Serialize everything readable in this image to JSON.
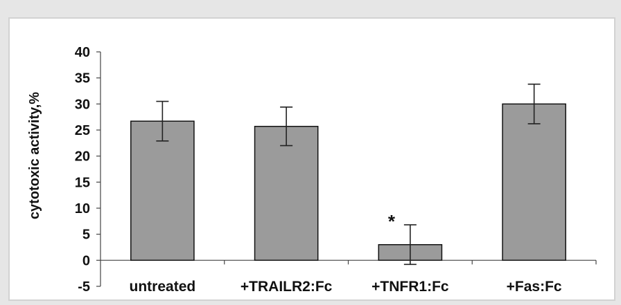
{
  "chart_data": {
    "type": "bar",
    "ylabel": "cytotoxic activity,%",
    "xlabel": "",
    "title": "",
    "ylim": [
      -5,
      40
    ],
    "yticks": [
      -5,
      0,
      5,
      10,
      15,
      20,
      25,
      30,
      35,
      40
    ],
    "categories": [
      "untreated",
      "+TRAILR2:Fc",
      "+TNFR1:Fc",
      "+Fas:Fc"
    ],
    "values": [
      26.7,
      25.7,
      3.0,
      30.0
    ],
    "errors": [
      3.8,
      3.7,
      3.8,
      3.8
    ],
    "annotations": [
      {
        "category": "+TNFR1:Fc",
        "text": "*"
      }
    ],
    "grid": false,
    "legend": "none"
  },
  "colors": {
    "bar_fill": "#9b9b9b",
    "bar_stroke": "#111111",
    "axis": "#444444",
    "text": "#111111"
  }
}
